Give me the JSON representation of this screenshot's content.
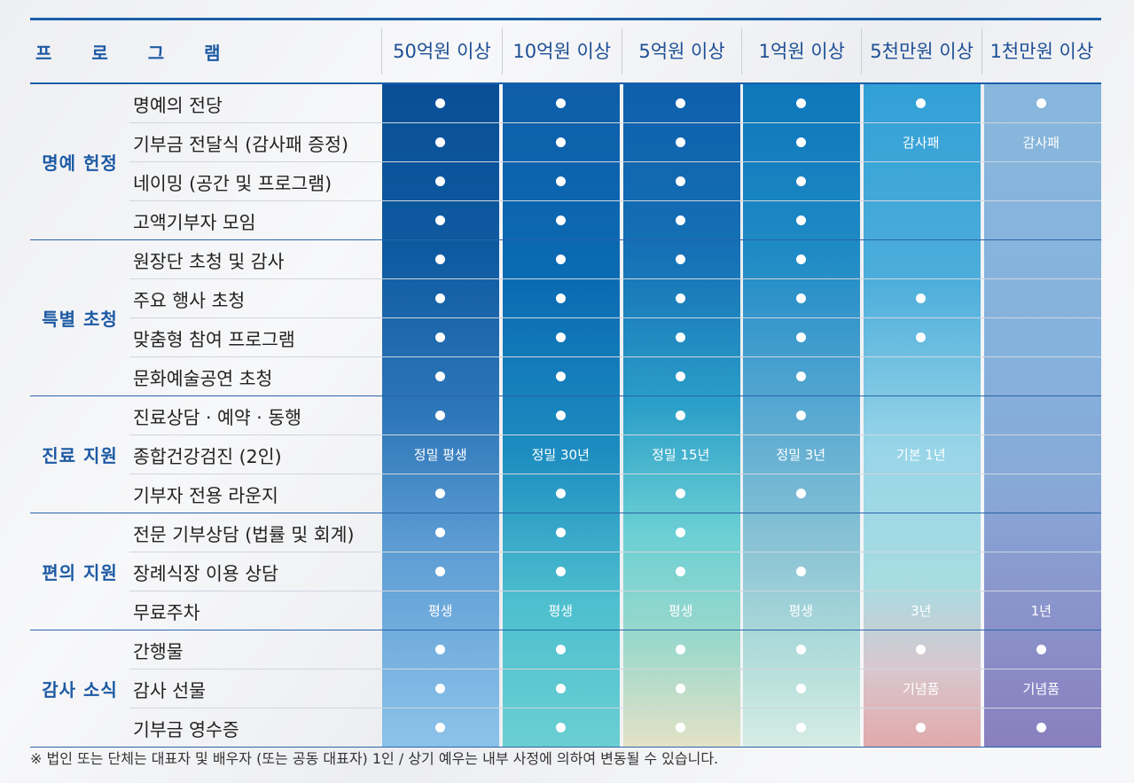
{
  "header": {
    "program_label": "프 로 그 램",
    "columns": [
      "50억원 이상",
      "10억원 이상",
      "5억원 이상",
      "1억원 이상",
      "5천만원 이상",
      "1천만원 이상"
    ]
  },
  "categories": [
    {
      "label": "명예 헌정",
      "items": [
        {
          "name": "명예의 전당",
          "cells": [
            "●",
            "●",
            "●",
            "●",
            "●",
            "●"
          ]
        },
        {
          "name": "기부금 전달식 (감사패 증정)",
          "cells": [
            "●",
            "●",
            "●",
            "●",
            "감사패",
            "감사패"
          ]
        },
        {
          "name": "네이밍 (공간 및 프로그램)",
          "cells": [
            "●",
            "●",
            "●",
            "●",
            "",
            ""
          ]
        },
        {
          "name": "고액기부자 모임",
          "cells": [
            "●",
            "●",
            "●",
            "●",
            "",
            ""
          ]
        }
      ]
    },
    {
      "label": "특별 초청",
      "items": [
        {
          "name": "원장단 초청 및 감사",
          "cells": [
            "●",
            "●",
            "●",
            "●",
            "",
            ""
          ]
        },
        {
          "name": "주요 행사 초청",
          "cells": [
            "●",
            "●",
            "●",
            "●",
            "●",
            ""
          ]
        },
        {
          "name": "맞춤형 참여 프로그램",
          "cells": [
            "●",
            "●",
            "●",
            "●",
            "●",
            ""
          ]
        },
        {
          "name": "문화예술공연 초청",
          "cells": [
            "●",
            "●",
            "●",
            "●",
            "",
            ""
          ]
        }
      ]
    },
    {
      "label": "진료 지원",
      "items": [
        {
          "name": "진료상담 · 예약 · 동행",
          "cells": [
            "●",
            "●",
            "●",
            "●",
            "",
            ""
          ]
        },
        {
          "name": "종합건강검진 (2인)",
          "cells": [
            "정밀 평생",
            "정밀 30년",
            "정밀 15년",
            "정밀 3년",
            "기본 1년",
            ""
          ]
        },
        {
          "name": "기부자 전용 라운지",
          "cells": [
            "●",
            "●",
            "●",
            "●",
            "",
            ""
          ]
        }
      ]
    },
    {
      "label": "편의 지원",
      "items": [
        {
          "name": "전문 기부상담 (법률 및 회계)",
          "cells": [
            "●",
            "●",
            "●",
            "",
            "",
            ""
          ]
        },
        {
          "name": "장례식장 이용 상담",
          "cells": [
            "●",
            "●",
            "●",
            "●",
            "",
            ""
          ]
        },
        {
          "name": "무료주차",
          "cells": [
            "평생",
            "평생",
            "평생",
            "평생",
            "3년",
            "1년"
          ]
        }
      ]
    },
    {
      "label": "감사 소식",
      "items": [
        {
          "name": "간행물",
          "cells": [
            "●",
            "●",
            "●",
            "●",
            "●",
            "●"
          ]
        },
        {
          "name": "감사 선물",
          "cells": [
            "●",
            "●",
            "●",
            "●",
            "기념품",
            "기념품"
          ]
        },
        {
          "name": "기부금 영수증",
          "cells": [
            "●",
            "●",
            "●",
            "●",
            "●",
            "●"
          ]
        }
      ]
    }
  ],
  "note": "※ 법인 또는 단체는 대표자 및 배우자 (또는 공동 대표자) 1인 / 상기 예우는 내부 사정에 의하여 변동될 수 있습니다."
}
